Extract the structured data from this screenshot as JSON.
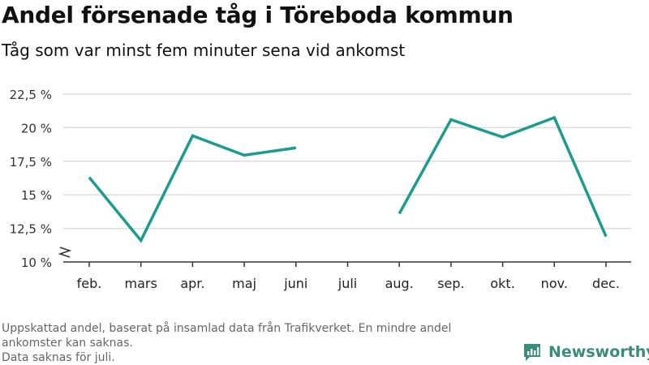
{
  "header": {
    "title": "Andel försenade tåg i Töreboda kommun",
    "subtitle": "Tåg som var minst fem minuter sena vid ankomst"
  },
  "chart_data": {
    "type": "line",
    "title": "Andel försenade tåg i Töreboda kommun",
    "subtitle": "Tåg som var minst fem minuter sena vid ankomst",
    "xlabel": "",
    "ylabel": "",
    "categories": [
      "feb.",
      "mars",
      "apr.",
      "maj",
      "juni",
      "juli",
      "aug.",
      "sep.",
      "okt.",
      "nov.",
      "dec."
    ],
    "series": [
      {
        "values": [
          16.3,
          11.6,
          19.4,
          17.95,
          18.5,
          null,
          13.6,
          20.6,
          19.3,
          20.75,
          11.9
        ]
      }
    ],
    "yticks": [
      10,
      12.5,
      15,
      17.5,
      20,
      22.5
    ],
    "ytick_labels": [
      "10 %",
      "12,5 %",
      "15 %",
      "17,5 %",
      "20 %",
      "22,5 %"
    ],
    "ylim": [
      10,
      22.5
    ],
    "axis_break": true,
    "grid": true,
    "legend": "none",
    "line_color": "#1a9c8e",
    "grid_color": "#dddddd",
    "axis_color": "#333333"
  },
  "footnote": {
    "line1": "Uppskattad andel, baserat på insamlad data från Trafikverket. En mindre andel",
    "line2": "ankomster kan saknas.",
    "line3": "Data saknas för juli."
  },
  "logo": {
    "text": "Newsworthy",
    "color": "#3a8c7c",
    "icon": "newsworthy-logo-icon"
  }
}
